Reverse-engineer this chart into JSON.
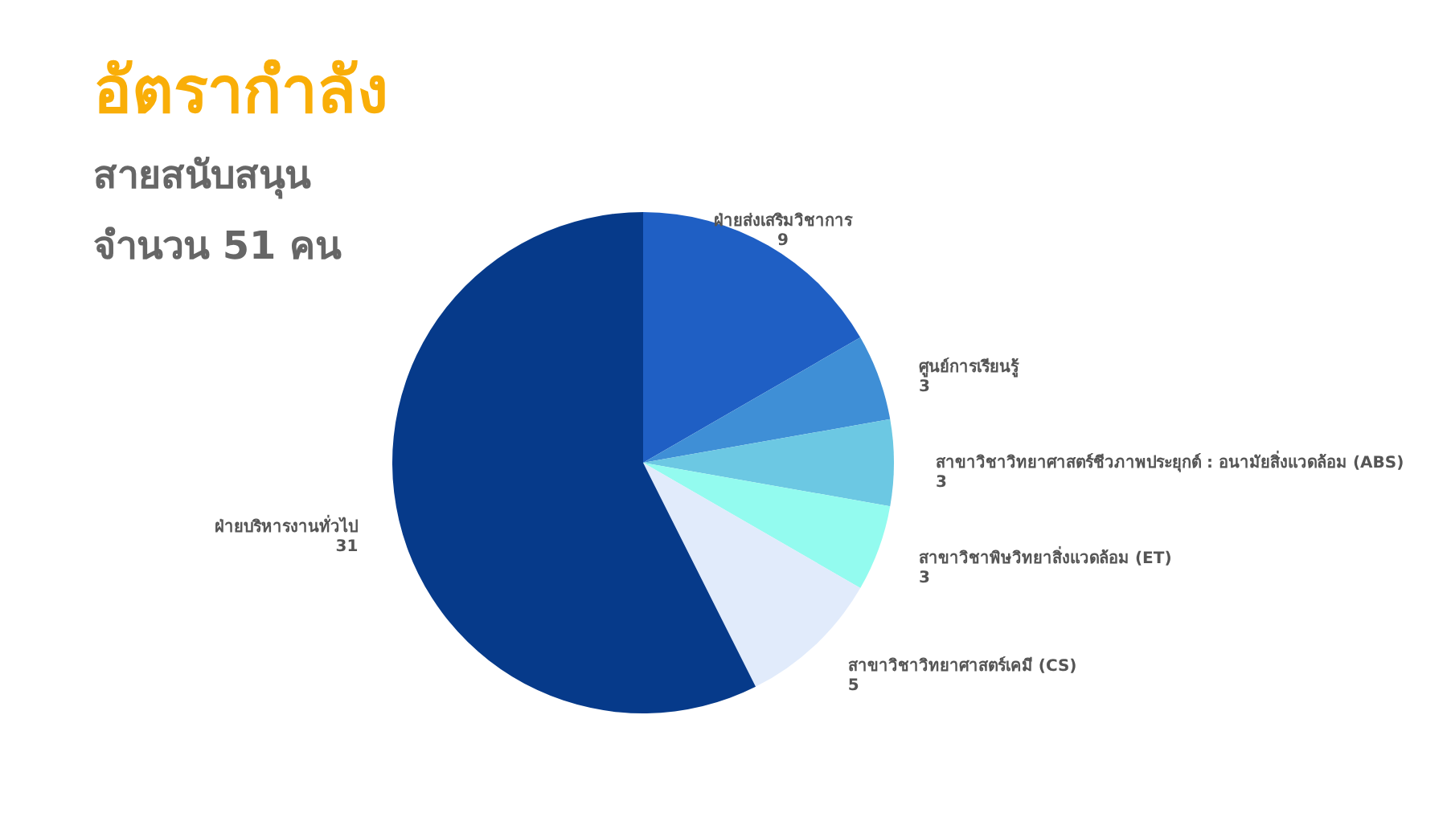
{
  "chart_data": {
    "type": "pie",
    "title": "อัตรากำลัง",
    "subtitle": "สายสนับสนุน\nจำนวน 51 คน",
    "categories": [
      "ฝ่ายส่งเสริมวิชาการ",
      "ศูนย์การเรียนรู้",
      "สาขาวิชาวิทยาศาสตร์ชีวภาพประยุกต์ : อนามัยสิ่งแวดล้อม (ABS)",
      "สาขาวิชาพิษวิทยาสิ่งแวดล้อม (ET)",
      "สาขาวิชาวิทยาศาสตร์เคมี (CS)",
      "ฝ่ายบริหารงานทั่วไป"
    ],
    "values": [
      9,
      3,
      3,
      3,
      5,
      31
    ],
    "colors": [
      "#1f5fc4",
      "#3f8fd6",
      "#6cc8e3",
      "#93fbef",
      "#e1ebfb",
      "#063a8a"
    ],
    "data_labels": true
  }
}
